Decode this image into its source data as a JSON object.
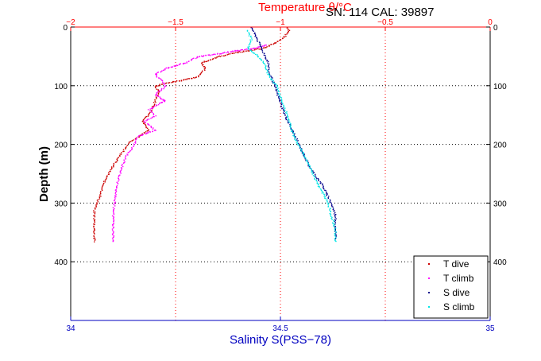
{
  "figure": {
    "header_text": "SN: 114  CAL: 39897"
  },
  "colors": {
    "temperature_axis": "#ff0000",
    "salinity_axis": "#0000c0",
    "t_dive": "#cc0000",
    "t_climb": "#ff00ff",
    "s_dive": "#00008b",
    "s_climb": "#00e5e5"
  },
  "chart_data": {
    "type": "scatter",
    "title": "",
    "ylabel": "Depth (m)",
    "ylim": [
      500,
      0
    ],
    "yticks": [
      0,
      100,
      200,
      300,
      400
    ],
    "y_axis_both_sides": true,
    "grid": "dotted, vertical lines at temperature ticks, horizontal lines at depth ticks",
    "legend_position": "bottom-right",
    "x_top": {
      "label": "Temperature θ/°C",
      "range": [
        -2,
        0
      ],
      "ticks": [
        -2,
        -1.5,
        -1,
        -0.5,
        0
      ],
      "tick_labels": [
        "−2",
        "−1.5",
        "−1",
        "−0.5",
        "0"
      ]
    },
    "x_bottom": {
      "label": "Salinity S(PSS−78)",
      "range": [
        34,
        35
      ],
      "ticks": [
        34,
        34.5,
        35
      ],
      "tick_labels": [
        "34",
        "34.5",
        "35"
      ]
    },
    "series": [
      {
        "name": "T dive",
        "axis": "top",
        "points": [
          [
            -0.97,
            0
          ],
          [
            -0.96,
            5
          ],
          [
            -0.97,
            10
          ],
          [
            -0.99,
            18
          ],
          [
            -1.02,
            25
          ],
          [
            -1.08,
            35
          ],
          [
            -1.2,
            42
          ],
          [
            -1.3,
            50
          ],
          [
            -1.38,
            60
          ],
          [
            -1.36,
            70
          ],
          [
            -1.4,
            85
          ],
          [
            -1.55,
            95
          ],
          [
            -1.6,
            100
          ],
          [
            -1.58,
            110
          ],
          [
            -1.6,
            125
          ],
          [
            -1.62,
            145
          ],
          [
            -1.66,
            160
          ],
          [
            -1.63,
            175
          ],
          [
            -1.72,
            195
          ],
          [
            -1.76,
            215
          ],
          [
            -1.8,
            235
          ],
          [
            -1.84,
            260
          ],
          [
            -1.86,
            285
          ],
          [
            -1.89,
            310
          ],
          [
            -1.89,
            340
          ],
          [
            -1.89,
            365
          ]
        ]
      },
      {
        "name": "T climb",
        "axis": "top",
        "points": [
          [
            -1.8,
            365
          ],
          [
            -1.8,
            340
          ],
          [
            -1.8,
            315
          ],
          [
            -1.79,
            290
          ],
          [
            -1.78,
            265
          ],
          [
            -1.76,
            240
          ],
          [
            -1.74,
            220
          ],
          [
            -1.7,
            200
          ],
          [
            -1.68,
            185
          ],
          [
            -1.6,
            175
          ],
          [
            -1.65,
            160
          ],
          [
            -1.6,
            150
          ],
          [
            -1.63,
            140
          ],
          [
            -1.58,
            130
          ],
          [
            -1.55,
            125
          ],
          [
            -1.6,
            115
          ],
          [
            -1.55,
            100
          ],
          [
            -1.57,
            90
          ],
          [
            -1.6,
            80
          ],
          [
            -1.55,
            70
          ],
          [
            -1.5,
            65
          ],
          [
            -1.45,
            60
          ],
          [
            -1.4,
            50
          ],
          [
            -1.3,
            45
          ],
          [
            -1.22,
            40
          ],
          [
            -1.18,
            38
          ],
          [
            -1.12,
            35
          ],
          [
            -1.07,
            30
          ]
        ]
      },
      {
        "name": "S dive",
        "axis": "bottom",
        "points": [
          [
            34.43,
            0
          ],
          [
            34.44,
            15
          ],
          [
            34.45,
            30
          ],
          [
            34.46,
            45
          ],
          [
            34.47,
            60
          ],
          [
            34.47,
            75
          ],
          [
            34.48,
            90
          ],
          [
            34.49,
            110
          ],
          [
            34.5,
            130
          ],
          [
            34.51,
            150
          ],
          [
            34.53,
            180
          ],
          [
            34.55,
            210
          ],
          [
            34.57,
            240
          ],
          [
            34.6,
            270
          ],
          [
            34.62,
            300
          ],
          [
            34.63,
            320
          ],
          [
            34.63,
            340
          ],
          [
            34.63,
            360
          ]
        ]
      },
      {
        "name": "S climb",
        "axis": "bottom",
        "points": [
          [
            34.63,
            365
          ],
          [
            34.63,
            345
          ],
          [
            34.62,
            320
          ],
          [
            34.61,
            295
          ],
          [
            34.59,
            270
          ],
          [
            34.57,
            240
          ],
          [
            34.55,
            210
          ],
          [
            34.53,
            185
          ],
          [
            34.52,
            160
          ],
          [
            34.51,
            140
          ],
          [
            34.5,
            120
          ],
          [
            34.49,
            100
          ],
          [
            34.47,
            80
          ],
          [
            34.46,
            60
          ],
          [
            34.44,
            45
          ],
          [
            34.42,
            35
          ],
          [
            34.43,
            20
          ],
          [
            34.42,
            5
          ]
        ]
      }
    ]
  }
}
